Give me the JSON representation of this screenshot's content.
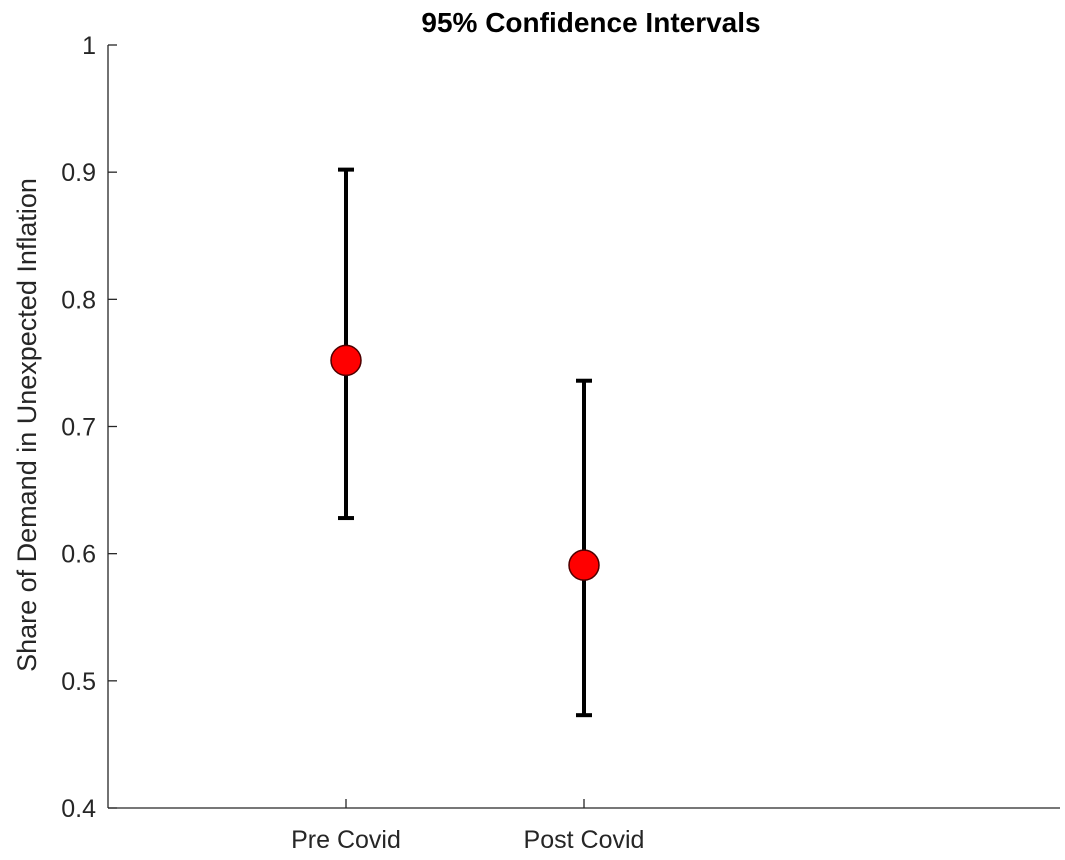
{
  "chart_data": {
    "type": "errorbar",
    "title": "95% Confidence Intervals",
    "xlabel": "",
    "ylabel": "Share of Demand in Unexpected Inflation",
    "categories": [
      "Pre Covid",
      "Post Covid"
    ],
    "xlim": [
      0,
      4
    ],
    "ylim": [
      0.4,
      1
    ],
    "y_ticks": [
      "0.4",
      "0.5",
      "0.6",
      "0.7",
      "0.8",
      "0.9",
      "1"
    ],
    "grid": false,
    "points": [
      {
        "category": "Pre Covid",
        "estimate": 0.752,
        "lower": 0.628,
        "upper": 0.902
      },
      {
        "category": "Post Covid",
        "estimate": 0.591,
        "lower": 0.473,
        "upper": 0.736
      }
    ],
    "colors": {
      "marker_fill": "#ff0000",
      "marker_edge": "#4d0000",
      "interval": "#000000",
      "axis": "#262626"
    }
  }
}
